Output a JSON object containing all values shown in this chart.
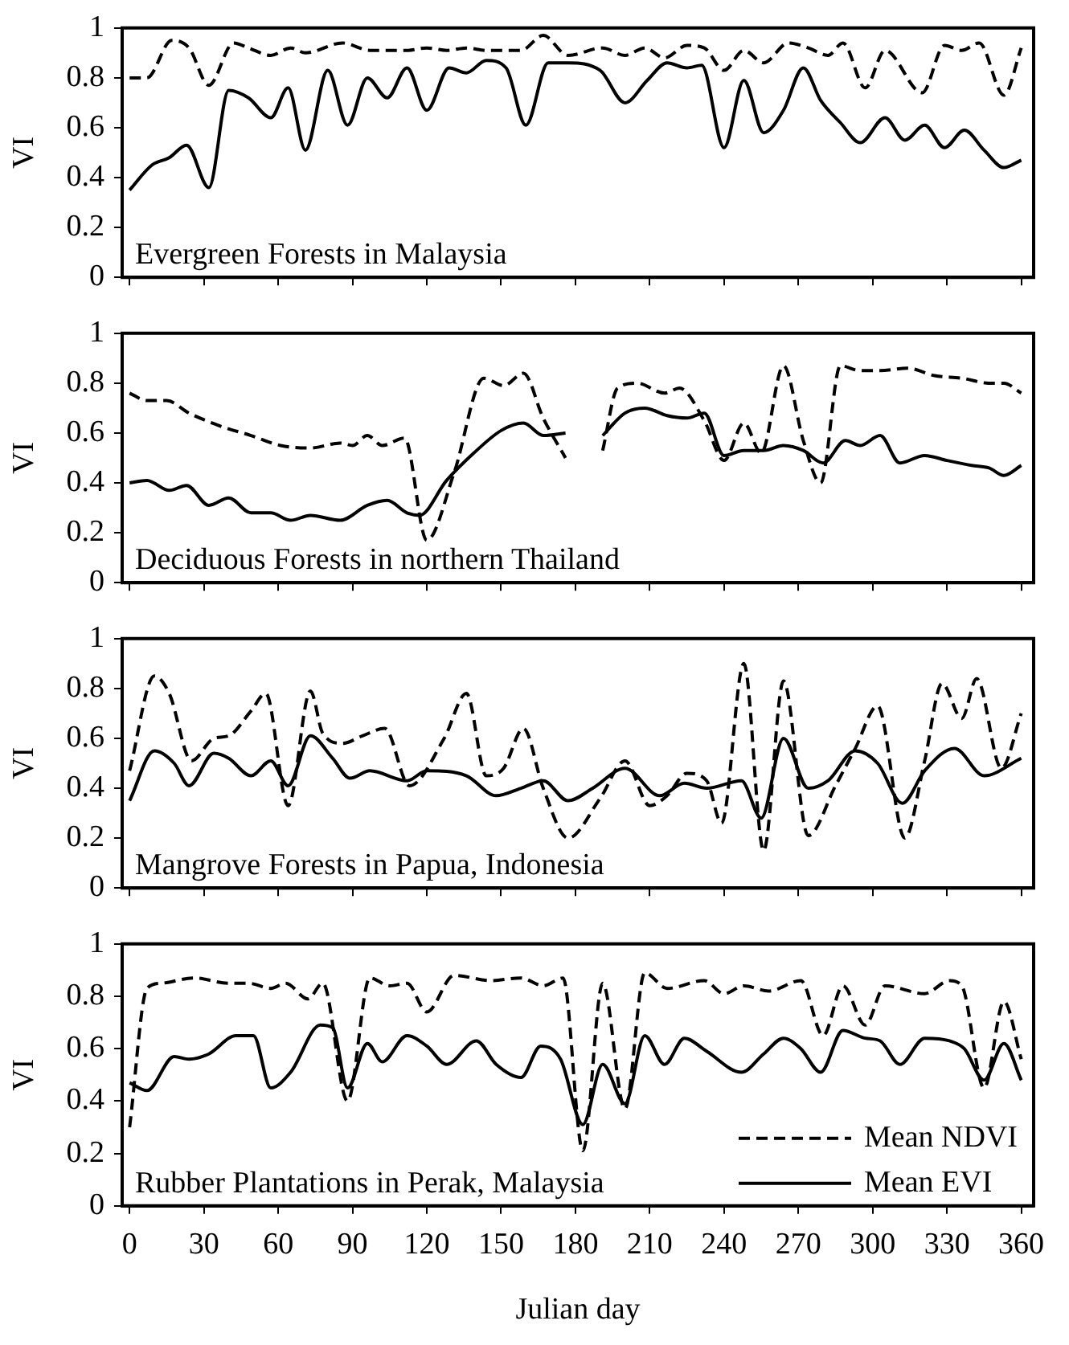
{
  "chart_data": [
    {
      "type": "line",
      "ylabel": "VI",
      "annotations": [
        "Evergreen Forests in Malaysia"
      ],
      "xlim": [
        -3,
        365
      ],
      "xticks": [
        0,
        30,
        60,
        90,
        120,
        150,
        180,
        210,
        240,
        270,
        300,
        330,
        360
      ],
      "ylim": [
        0,
        1
      ],
      "yticks": [
        0,
        0.2,
        0.4,
        0.6,
        0.8,
        1
      ],
      "tick_labels": "y",
      "grid": false,
      "legend": false,
      "series": [
        {
          "color": "#000000",
          "line_style": "dashed",
          "x": [
            0,
            7,
            17,
            24,
            32,
            42,
            48,
            57,
            65,
            71,
            86,
            97,
            112,
            120,
            128,
            136,
            144,
            158,
            167,
            177,
            191,
            200,
            208,
            216,
            225,
            232,
            240,
            248,
            256,
            266,
            274,
            282,
            288,
            297,
            305,
            320,
            329,
            336,
            343,
            353,
            360
          ],
          "values": [
            0.8,
            0.8,
            0.95,
            0.92,
            0.77,
            0.94,
            0.92,
            0.89,
            0.92,
            0.9,
            0.94,
            0.91,
            0.91,
            0.92,
            0.91,
            0.92,
            0.91,
            0.91,
            0.97,
            0.89,
            0.92,
            0.89,
            0.92,
            0.88,
            0.93,
            0.92,
            0.83,
            0.91,
            0.86,
            0.94,
            0.92,
            0.89,
            0.94,
            0.76,
            0.91,
            0.74,
            0.93,
            0.91,
            0.94,
            0.73,
            0.92
          ]
        },
        {
          "color": "#000000",
          "line_style": "solid",
          "x": [
            0,
            9,
            16,
            23,
            32,
            40,
            48,
            57,
            64,
            71,
            80,
            88,
            96,
            104,
            112,
            120,
            129,
            136,
            144,
            152,
            160,
            169,
            177,
            190,
            200,
            209,
            217,
            225,
            231,
            240,
            248,
            256,
            264,
            272,
            279,
            287,
            295,
            305,
            313,
            321,
            329,
            337,
            345,
            353,
            360
          ],
          "values": [
            0.35,
            0.45,
            0.48,
            0.53,
            0.36,
            0.75,
            0.72,
            0.64,
            0.76,
            0.51,
            0.83,
            0.61,
            0.8,
            0.72,
            0.84,
            0.67,
            0.84,
            0.82,
            0.87,
            0.84,
            0.61,
            0.86,
            0.86,
            0.83,
            0.7,
            0.79,
            0.86,
            0.84,
            0.85,
            0.52,
            0.79,
            0.58,
            0.67,
            0.84,
            0.71,
            0.62,
            0.54,
            0.64,
            0.55,
            0.61,
            0.52,
            0.59,
            0.51,
            0.44,
            0.47
          ]
        }
      ]
    },
    {
      "type": "line",
      "ylabel": "VI",
      "annotations": [
        "Deciduous Forests in northern Thailand"
      ],
      "xlim": [
        -3,
        365
      ],
      "xticks": [
        0,
        30,
        60,
        90,
        120,
        150,
        180,
        210,
        240,
        270,
        300,
        330,
        360
      ],
      "ylim": [
        0,
        1
      ],
      "yticks": [
        0,
        0.2,
        0.4,
        0.6,
        0.8,
        1
      ],
      "tick_labels": "y",
      "grid": false,
      "legend": false,
      "series": [
        {
          "color": "#000000",
          "line_style": "dashed",
          "x": [
            0,
            7,
            15,
            24,
            36,
            49,
            61,
            73,
            85,
            90,
            96,
            102,
            111,
            120,
            131,
            143,
            151,
            159,
            167,
            176,
            184,
            191,
            197,
            205,
            216,
            222,
            232,
            240,
            248,
            255,
            264,
            272,
            279,
            287,
            295,
            303,
            314,
            325,
            336,
            347,
            353,
            360
          ],
          "values": [
            0.76,
            0.73,
            0.73,
            0.68,
            0.63,
            0.59,
            0.55,
            0.54,
            0.56,
            0.55,
            0.59,
            0.55,
            0.58,
            0.17,
            0.44,
            0.82,
            0.79,
            0.84,
            0.66,
            0.5,
            null,
            0.53,
            0.78,
            0.8,
            0.76,
            0.78,
            0.65,
            0.49,
            0.64,
            0.52,
            0.87,
            0.57,
            0.4,
            0.87,
            0.85,
            0.85,
            0.86,
            0.83,
            0.82,
            0.8,
            0.8,
            0.76
          ]
        },
        {
          "color": "#000000",
          "line_style": "solid",
          "x": [
            0,
            7,
            16,
            23,
            32,
            40,
            49,
            57,
            65,
            73,
            85,
            96,
            104,
            112,
            117,
            128,
            139,
            150,
            159,
            167,
            176,
            184,
            191,
            200,
            208,
            217,
            225,
            232,
            240,
            248,
            256,
            264,
            272,
            280,
            289,
            295,
            303,
            311,
            321,
            330,
            340,
            347,
            353,
            360
          ],
          "values": [
            0.4,
            0.41,
            0.37,
            0.39,
            0.31,
            0.34,
            0.28,
            0.28,
            0.25,
            0.27,
            0.25,
            0.31,
            0.33,
            0.28,
            0.27,
            0.41,
            0.52,
            0.61,
            0.64,
            0.59,
            0.6,
            null,
            0.59,
            0.68,
            0.7,
            0.67,
            0.66,
            0.68,
            0.51,
            0.53,
            0.53,
            0.55,
            0.53,
            0.48,
            0.57,
            0.55,
            0.59,
            0.48,
            0.51,
            0.49,
            0.47,
            0.46,
            0.43,
            0.47
          ]
        }
      ]
    },
    {
      "type": "line",
      "ylabel": "VI",
      "annotations": [
        "Mangrove Forests in Papua, Indonesia"
      ],
      "xlim": [
        -3,
        365
      ],
      "xticks": [
        0,
        30,
        60,
        90,
        120,
        150,
        180,
        210,
        240,
        270,
        300,
        330,
        360
      ],
      "ylim": [
        0,
        1
      ],
      "yticks": [
        0,
        0.2,
        0.4,
        0.6,
        0.8,
        1
      ],
      "tick_labels": "y",
      "grid": false,
      "legend": false,
      "series": [
        {
          "color": "#000000",
          "line_style": "dashed",
          "x": [
            0,
            10,
            16,
            25,
            34,
            40,
            49,
            55,
            64,
            73,
            78,
            86,
            94,
            103,
            113,
            127,
            136,
            144,
            151,
            159,
            167,
            177,
            190,
            200,
            210,
            217,
            225,
            233,
            239,
            248,
            256,
            264,
            274,
            285,
            293,
            302,
            313,
            321,
            328,
            336,
            342,
            352,
            360
          ],
          "values": [
            0.47,
            0.85,
            0.78,
            0.51,
            0.6,
            0.61,
            0.71,
            0.78,
            0.33,
            0.79,
            0.62,
            0.58,
            0.61,
            0.64,
            0.41,
            0.6,
            0.78,
            0.45,
            0.48,
            0.64,
            0.4,
            0.2,
            0.36,
            0.51,
            0.33,
            0.37,
            0.46,
            0.43,
            0.26,
            0.9,
            0.15,
            0.83,
            0.21,
            0.41,
            0.56,
            0.73,
            0.2,
            0.51,
            0.82,
            0.68,
            0.84,
            0.48,
            0.7
          ]
        },
        {
          "color": "#000000",
          "line_style": "solid",
          "x": [
            0,
            10,
            18,
            24,
            34,
            40,
            49,
            57,
            64,
            73,
            82,
            89,
            97,
            112,
            120,
            136,
            148,
            158,
            167,
            177,
            187,
            200,
            214,
            224,
            233,
            247,
            255,
            264,
            274,
            282,
            293,
            302,
            312,
            321,
            333,
            345,
            360
          ],
          "values": [
            0.35,
            0.55,
            0.5,
            0.41,
            0.54,
            0.52,
            0.45,
            0.51,
            0.41,
            0.61,
            0.52,
            0.44,
            0.47,
            0.43,
            0.47,
            0.45,
            0.37,
            0.4,
            0.43,
            0.35,
            0.4,
            0.48,
            0.37,
            0.42,
            0.4,
            0.43,
            0.28,
            0.6,
            0.4,
            0.43,
            0.55,
            0.5,
            0.34,
            0.47,
            0.56,
            0.45,
            0.52
          ]
        }
      ]
    },
    {
      "type": "line",
      "xlabel": "Julian day",
      "ylabel": "VI",
      "annotations": [
        "Rubber Plantations in Perak, Malaysia"
      ],
      "xlim": [
        -3,
        365
      ],
      "xticks": [
        0,
        30,
        60,
        90,
        120,
        150,
        180,
        210,
        240,
        270,
        300,
        330,
        360
      ],
      "ylim": [
        0,
        1
      ],
      "yticks": [
        0,
        0.2,
        0.4,
        0.6,
        0.8,
        1
      ],
      "grid": false,
      "legend": "bottom right",
      "series": [
        {
          "name": "Mean NDVI",
          "color": "#000000",
          "line_style": "dashed",
          "x": [
            0,
            7,
            13,
            26,
            40,
            48,
            57,
            63,
            72,
            78,
            88,
            97,
            105,
            112,
            120,
            131,
            146,
            158,
            167,
            175,
            183,
            191,
            200,
            208,
            217,
            232,
            240,
            248,
            258,
            271,
            280,
            288,
            297,
            305,
            321,
            331,
            336,
            345,
            353,
            360
          ],
          "values": [
            0.3,
            0.83,
            0.85,
            0.87,
            0.85,
            0.85,
            0.83,
            0.85,
            0.79,
            0.85,
            0.4,
            0.87,
            0.84,
            0.85,
            0.74,
            0.88,
            0.86,
            0.87,
            0.84,
            0.87,
            0.21,
            0.85,
            0.37,
            0.89,
            0.83,
            0.86,
            0.81,
            0.84,
            0.82,
            0.86,
            0.65,
            0.84,
            0.69,
            0.84,
            0.81,
            0.86,
            0.84,
            0.45,
            0.78,
            0.56
          ]
        },
        {
          "name": "Mean EVI",
          "color": "#000000",
          "line_style": "solid",
          "x": [
            0,
            7,
            18,
            24,
            32,
            43,
            50,
            57,
            65,
            77,
            82,
            88,
            96,
            102,
            112,
            120,
            128,
            140,
            148,
            158,
            166,
            174,
            183,
            191,
            200,
            208,
            216,
            224,
            233,
            247,
            256,
            264,
            271,
            279,
            288,
            297,
            303,
            311,
            321,
            331,
            337,
            345,
            353,
            360
          ],
          "values": [
            0.47,
            0.44,
            0.57,
            0.56,
            0.58,
            0.65,
            0.65,
            0.45,
            0.51,
            0.69,
            0.68,
            0.45,
            0.62,
            0.55,
            0.65,
            0.61,
            0.54,
            0.63,
            0.54,
            0.49,
            0.61,
            0.56,
            0.31,
            0.54,
            0.39,
            0.65,
            0.54,
            0.64,
            0.59,
            0.51,
            0.58,
            0.64,
            0.6,
            0.51,
            0.67,
            0.64,
            0.63,
            0.54,
            0.64,
            0.63,
            0.6,
            0.48,
            0.62,
            0.48
          ]
        }
      ]
    }
  ]
}
